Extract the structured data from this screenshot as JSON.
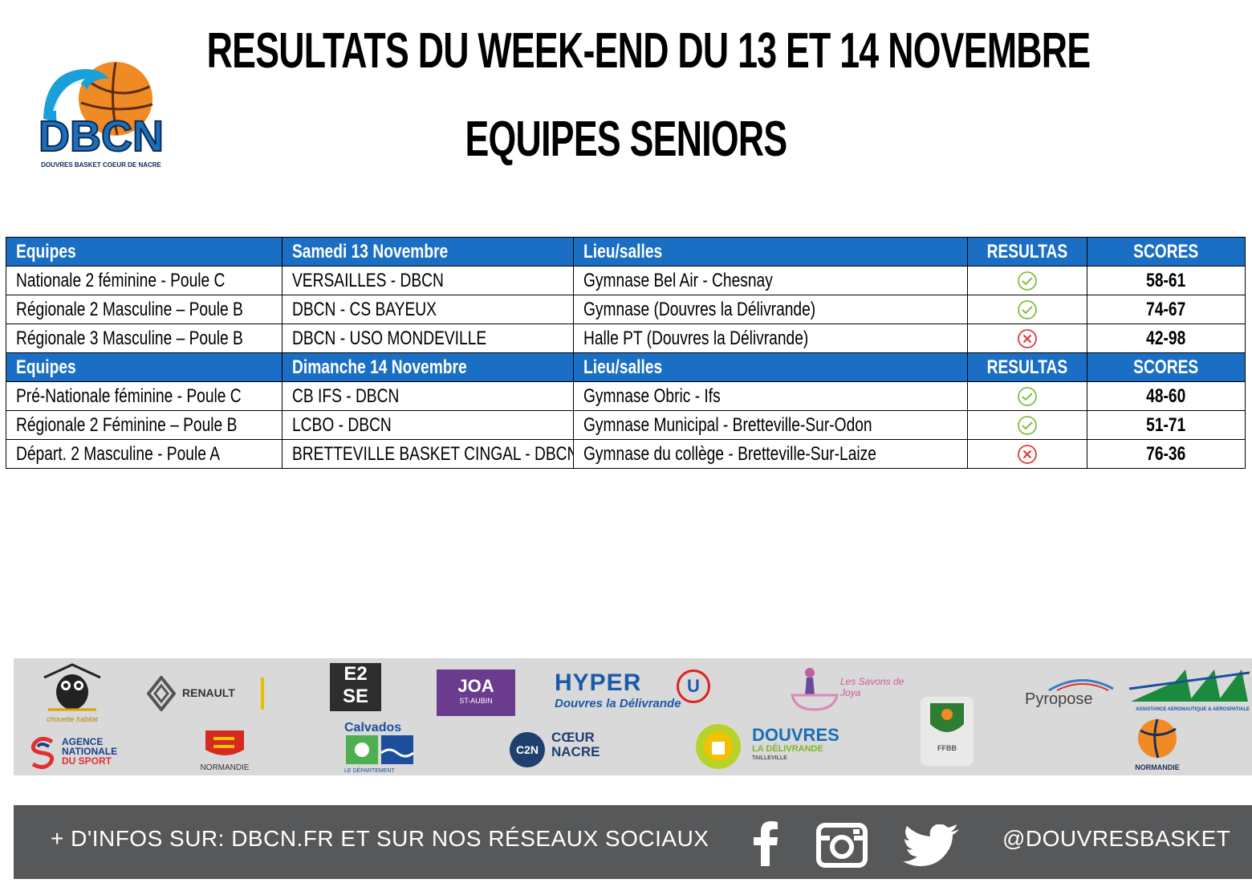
{
  "header": {
    "title": "RESULTATS DU WEEK-END DU 13  ET 14 NOVEMBRE",
    "subtitle": "EQUIPES SENIORS",
    "logo_text": "DBCN",
    "logo_subtext": "DOUVRES BASKET COEUR DE NACRE"
  },
  "sections": [
    {
      "headers": [
        "Equipes",
        "Samedi 13 Novembre",
        "Lieu/salles",
        "RESULTAS",
        "SCORES"
      ],
      "rows": [
        {
          "team": "Nationale 2 féminine - Poule C",
          "match": "VERSAILLES - DBCN",
          "venue": "Gymnase Bel Air - Chesnay",
          "result": "win",
          "score": "58-61"
        },
        {
          "team": "Régionale 2 Masculine – Poule B",
          "match": "DBCN - CS BAYEUX",
          "venue": "Gymnase (Douvres la Délivrande)",
          "result": "win",
          "score": "74-67"
        },
        {
          "team": "Régionale 3 Masculine – Poule B",
          "match": "DBCN - USO MONDEVILLE",
          "venue": "Halle PT (Douvres la Délivrande)",
          "result": "loss",
          "score": "42-98"
        }
      ]
    },
    {
      "headers": [
        "Equipes",
        "Dimanche 14 Novembre",
        "Lieu/salles",
        "RESULTAS",
        "SCORES"
      ],
      "rows": [
        {
          "team": "Pré-Nationale féminine - Poule C",
          "match": "CB IFS - DBCN",
          "venue": "Gymnase Obric - Ifs",
          "result": "win",
          "score": "48-60"
        },
        {
          "team": "Régionale 2 Féminine – Poule B",
          "match": "LCBO - DBCN",
          "venue": "Gymnase Municipal - Bretteville-Sur-Odon",
          "result": "win",
          "score": "51-71"
        },
        {
          "team": "Départ. 2 Masculine - Poule A",
          "match": "BRETTEVILLE BASKET CINGAL - DBCN",
          "venue": "Gymnase du collège - Bretteville-Sur-Laize",
          "result": "loss",
          "score": "76-36"
        }
      ]
    }
  ],
  "colors": {
    "header_bg": "#1a6fc4",
    "win": "#7cc043",
    "loss": "#e03a3a",
    "footer_bg": "#575859",
    "sponsor_bg": "#d9d9d9"
  },
  "sponsors": {
    "chouette": "chouette habitat",
    "renault": "RENAULT",
    "e2se_top": "E2",
    "e2se_bottom": "SE",
    "joa": "JOA",
    "joa_sub": "ST-AUBIN",
    "hyper": "HYPER",
    "hyper_sub": "Douvres la Délivrande",
    "savons": "Les Savons de Joya",
    "pyropose": "Pyropose",
    "aaa": "ASSISTANCE AERONAUTIQUE & AEROSPATIALE",
    "ans_1": "AGENCE",
    "ans_2": "NATIONALE",
    "ans_3": "DU SPORT",
    "normandie": "NORMANDIE",
    "calvados": "Calvados",
    "calvados_sub": "LE DÉPARTEMENT",
    "c2n_logo": "C2N",
    "c2n_1": "CŒUR",
    "c2n_2": "NACRE",
    "douvres_1": "DOUVRES",
    "douvres_2": "LA DÉLIVRANDE",
    "douvres_3": "TAILLEVILLE",
    "ffbb": "FFBB",
    "normandie_basket": "NORMANDIE"
  },
  "footer": {
    "info": "+ D'INFOS SUR: DBCN.FR ET SUR NOS RÉSEAUX SOCIAUX",
    "handle": "@DOUVRESBASKET"
  }
}
